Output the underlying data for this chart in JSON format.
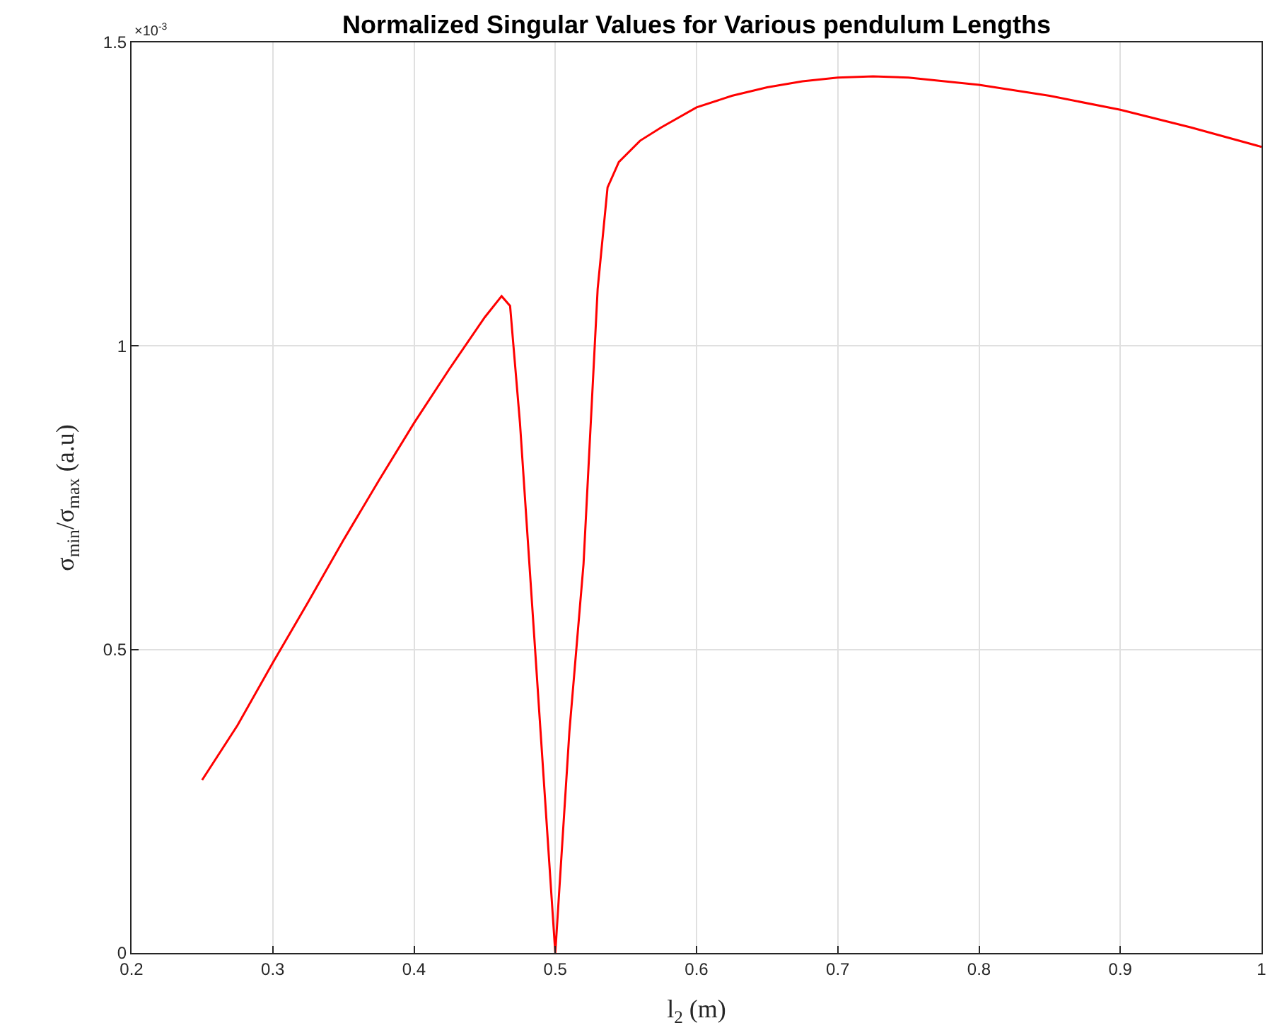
{
  "chart_data": {
    "type": "line",
    "title": "Normalized Singular Values for Various pendulum Lengths",
    "xlabel": "l$_{2}$ (m)",
    "ylabel": "σ$_{min}$/σ$_{max}$ (a.u)",
    "annotations": [
      "×10$^{-3}$"
    ],
    "x": [
      0.25,
      0.275,
      0.3,
      0.325,
      0.35,
      0.375,
      0.4,
      0.425,
      0.45,
      0.462,
      0.468,
      0.475,
      0.485,
      0.5,
      0.51,
      0.52,
      0.53,
      0.537,
      0.545,
      0.56,
      0.575,
      0.6,
      0.625,
      0.65,
      0.675,
      0.7,
      0.725,
      0.75,
      0.8,
      0.85,
      0.9,
      0.95,
      1.0
    ],
    "series": [
      {
        "color": "#ff0000",
        "values": [
          0.285,
          0.375,
          0.478,
          0.578,
          0.68,
          0.778,
          0.873,
          0.962,
          1.047,
          1.082,
          1.066,
          0.873,
          0.525,
          0.0,
          0.365,
          0.641,
          1.094,
          1.261,
          1.303,
          1.338,
          1.36,
          1.393,
          1.412,
          1.426,
          1.436,
          1.442,
          1.444,
          1.442,
          1.43,
          1.412,
          1.389,
          1.36,
          1.328
        ]
      }
    ],
    "xlim": [
      0.2,
      1.0
    ],
    "xticks": [
      0.2,
      0.3,
      0.4,
      0.5,
      0.6,
      0.7,
      0.8,
      0.9,
      {
        "value": 1.0,
        "label": "1"
      }
    ],
    "ylim": [
      0,
      1.5
    ],
    "yticks": [
      0,
      0.5,
      1,
      1.5
    ],
    "grid": true,
    "marker": "none",
    "line_style": "solid"
  }
}
